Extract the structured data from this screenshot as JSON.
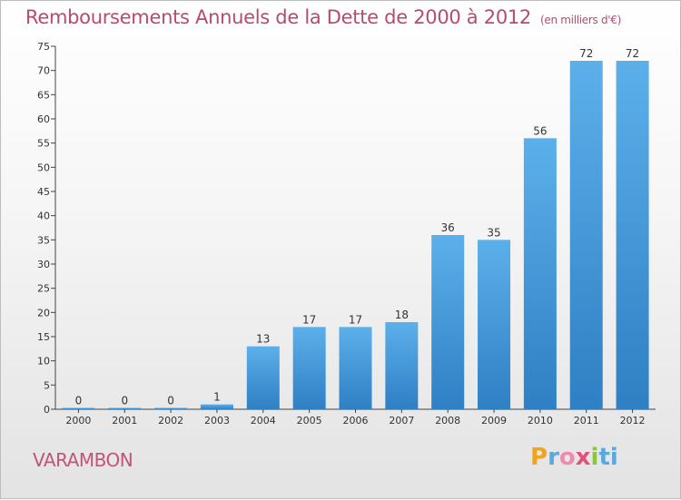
{
  "chart_data": {
    "type": "bar",
    "title": "Remboursements Annuels de la Dette de 2000 à 2012",
    "unit": "(en milliers d'€)",
    "categories": [
      "2000",
      "2001",
      "2002",
      "2003",
      "2004",
      "2005",
      "2006",
      "2007",
      "2008",
      "2009",
      "2010",
      "2011",
      "2012"
    ],
    "values": [
      0,
      0,
      0,
      1,
      13,
      17,
      17,
      18,
      36,
      35,
      56,
      72,
      72
    ],
    "ylim": [
      0,
      75
    ],
    "yticks": [
      0,
      5,
      10,
      15,
      20,
      25,
      30,
      35,
      40,
      45,
      50,
      55,
      60,
      65,
      70,
      75
    ],
    "grid": false,
    "bar_color": "#4a9fe0"
  },
  "commune": "VARAMBON",
  "logo": {
    "letters": [
      "P",
      "r",
      "o",
      "x",
      "i",
      "ti"
    ]
  }
}
